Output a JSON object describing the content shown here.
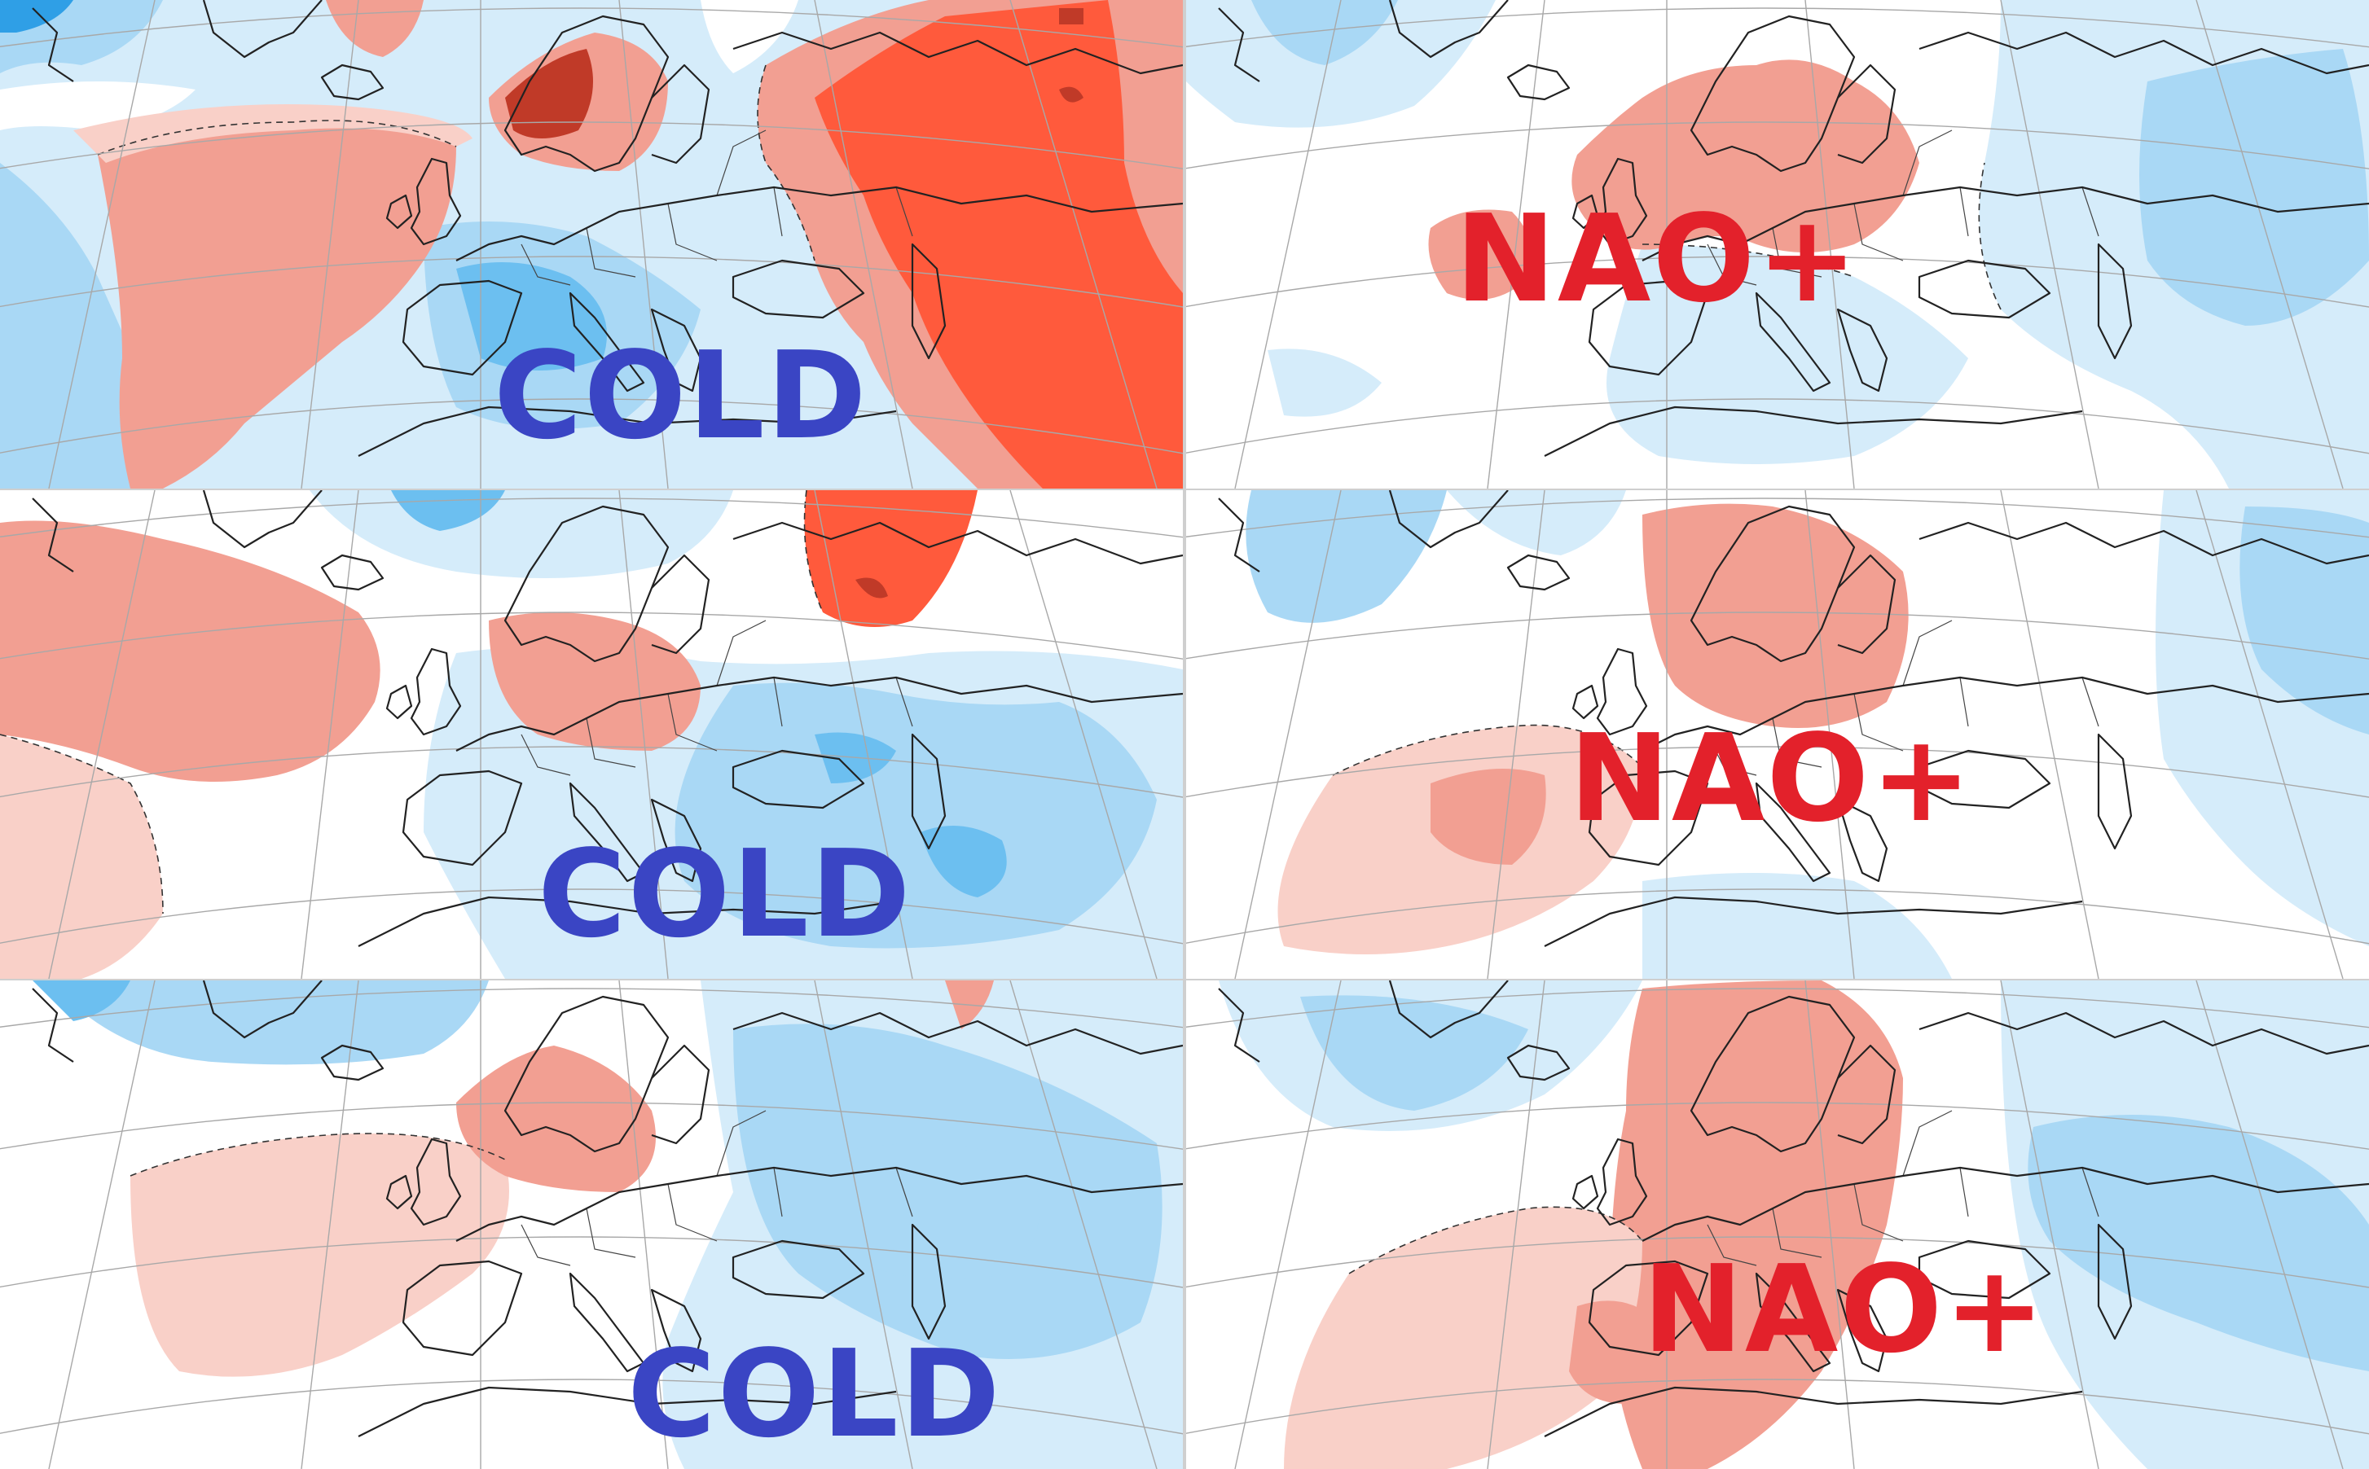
{
  "colors": {
    "cold_label": "#3a45c4",
    "nao_label": "#e3212b",
    "anom_blue_light": "#d5ecfa",
    "anom_blue_mid": "#a9d8f5",
    "anom_blue_strong": "#6cbff0",
    "anom_blue_deep": "#2f9fe6",
    "anom_red_light": "#f9d0c8",
    "anom_red_mid": "#f29f92",
    "anom_red_strong": "#ff5a3c",
    "anom_red_deep": "#c03a28",
    "coast": "#222222",
    "graticule": "#9a9a9a"
  },
  "panels": [
    {
      "id": "p0",
      "label": "COLD",
      "label_color_key": "cold_label"
    },
    {
      "id": "p1",
      "label": "NAO+",
      "label_color_key": "nao_label"
    },
    {
      "id": "p2",
      "label": "COLD",
      "label_color_key": "cold_label"
    },
    {
      "id": "p3",
      "label": "NAO+",
      "label_color_key": "nao_label"
    },
    {
      "id": "p4",
      "label": "COLD",
      "label_color_key": "cold_label"
    },
    {
      "id": "p5",
      "label": "NAO+",
      "label_color_key": "nao_label"
    }
  ]
}
